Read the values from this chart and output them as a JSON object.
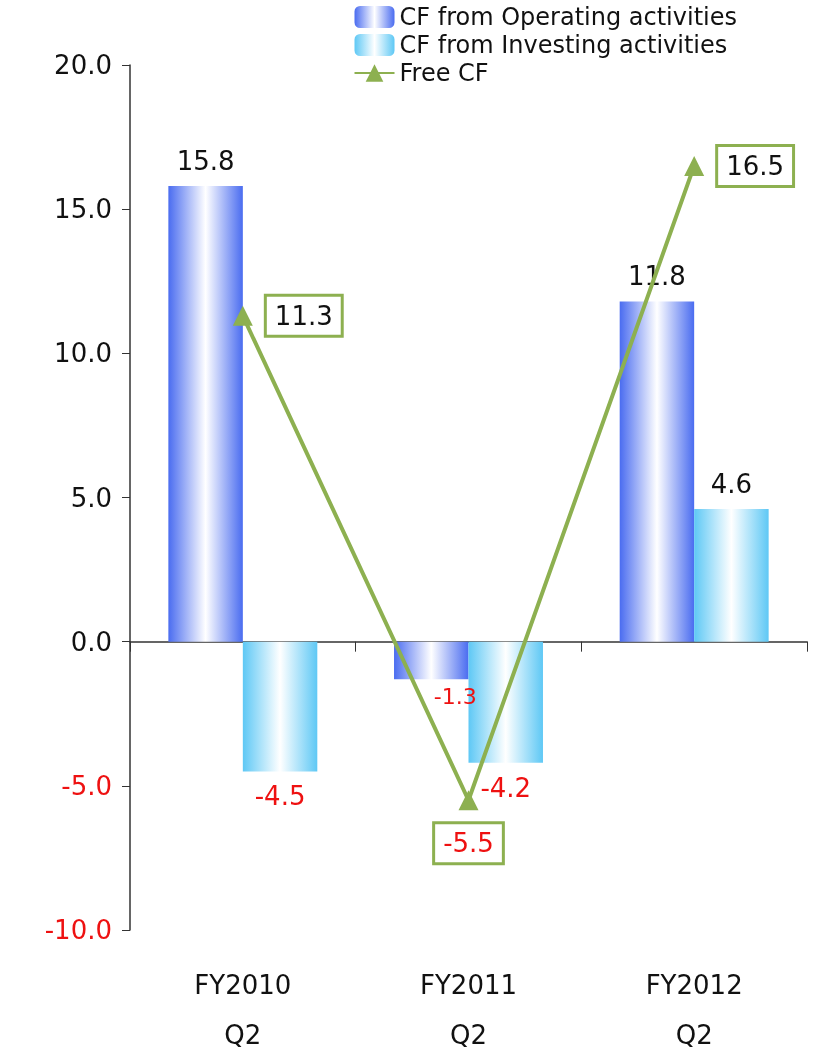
{
  "chart_data": {
    "type": "bar",
    "categories": [
      "FY2010\nQ2",
      "FY2011\nQ2",
      "FY2012\nQ2"
    ],
    "series": [
      {
        "name": "CF from Operating activities",
        "color": "#4a6cf0",
        "values": [
          15.8,
          -1.3,
          11.8
        ]
      },
      {
        "name": "CF from Investing activities",
        "color": "#5ec8f5",
        "values": [
          -4.5,
          -4.2,
          4.6
        ]
      },
      {
        "name": "Free CF",
        "type": "line",
        "color": "#8db050",
        "values": [
          11.3,
          -5.5,
          16.5
        ],
        "marker": "triangle"
      }
    ],
    "ylim": [
      -10,
      20
    ],
    "yticks": [
      {
        "value": -10,
        "label": "-10.0"
      },
      {
        "value": -5,
        "label": "-5.0"
      },
      {
        "value": 0,
        "label": "0.0"
      },
      {
        "value": 5,
        "label": "5.0"
      },
      {
        "value": 10,
        "label": "10.0"
      },
      {
        "value": 15,
        "label": "15.0"
      },
      {
        "value": 20,
        "label": "20.0"
      }
    ],
    "data_labels": true,
    "legend": "top right"
  }
}
